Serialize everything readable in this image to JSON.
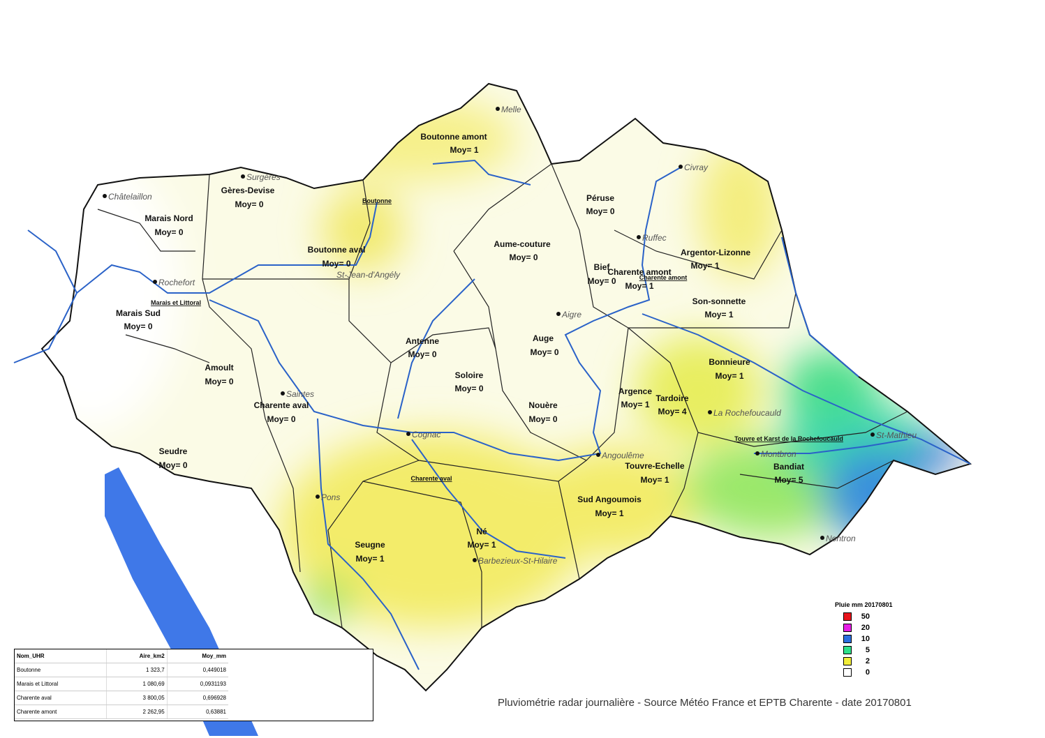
{
  "caption": "Pluviométrie radar journalière - Source Météo France et EPTB Charente - date 20170801",
  "legend": {
    "title": "Pluie mm 20170801",
    "items": [
      {
        "value": "50",
        "color": "#e8141c"
      },
      {
        "value": "20",
        "color": "#e61ee6"
      },
      {
        "value": "10",
        "color": "#2a6ee0"
      },
      {
        "value": "5",
        "color": "#2ee08a"
      },
      {
        "value": "2",
        "color": "#f2ee3a"
      },
      {
        "value": "0",
        "color": "#ffffff"
      }
    ]
  },
  "table": {
    "headers": [
      "Nom_UHR",
      "Aire_km2",
      "Moy_mm"
    ],
    "rows": [
      [
        "Boutonne",
        "1 323,7",
        "0,449018"
      ],
      [
        "Marais et Littoral",
        "1 080,69",
        "0,0931193"
      ],
      [
        "Charente aval",
        "3 800,05",
        "0,696928"
      ],
      [
        "Charente amont",
        "2 262,95",
        "0,63881"
      ]
    ]
  },
  "basins": [
    {
      "name": "Boutonne amont",
      "moy": "Moy= 1"
    },
    {
      "name": "Gères-Devise",
      "moy": "Moy= 0"
    },
    {
      "name": "Marais Nord",
      "moy": "Moy= 0"
    },
    {
      "name": "Boutonne aval",
      "moy": "Moy= 0"
    },
    {
      "name": "Marais Sud",
      "moy": "Moy= 0"
    },
    {
      "name": "Péruse",
      "moy": "Moy= 0"
    },
    {
      "name": "Aume-couture",
      "moy": "Moy= 0"
    },
    {
      "name": "Argentor-Lizonne",
      "moy": "Moy= 1"
    },
    {
      "name": "Bief",
      "moy": "Moy= 0"
    },
    {
      "name": "Charente amont",
      "moy": "Moy= 1"
    },
    {
      "name": "Son-sonnette",
      "moy": "Moy= 1"
    },
    {
      "name": "Auge",
      "moy": "Moy= 0"
    },
    {
      "name": "Antenne",
      "moy": "Moy= 0"
    },
    {
      "name": "Soloire",
      "moy": "Moy= 0"
    },
    {
      "name": "Bonnieure",
      "moy": "Moy= 1"
    },
    {
      "name": "Amoult",
      "moy": "Moy= 0"
    },
    {
      "name": "Charente aval",
      "moy": "Moy= 0"
    },
    {
      "name": "Argence",
      "moy": "Moy= 1"
    },
    {
      "name": "Tardoire",
      "moy": "Moy= 4"
    },
    {
      "name": "Nouère",
      "moy": "Moy= 0"
    },
    {
      "name": "Seudre",
      "moy": "Moy= 0"
    },
    {
      "name": "Touvre-Echelle",
      "moy": "Moy= 1"
    },
    {
      "name": "Bandiat",
      "moy": "Moy= 5"
    },
    {
      "name": "Sud Angoumois",
      "moy": "Moy= 1"
    },
    {
      "name": "Né",
      "moy": "Moy= 1"
    },
    {
      "name": "Seugne",
      "moy": "Moy= 1"
    }
  ],
  "towns": [
    "Melle",
    "Surgères",
    "Châtelaillon",
    "Civray",
    "Ruffec",
    "Rochefort",
    "St-Jean-d'Angély",
    "Aigre",
    "Saintes",
    "Cognac",
    "La Rochefoucauld",
    "St-Mathieu",
    "Angoulême",
    "Montbron",
    "Pons",
    "Barbezieux-St-Hilaire",
    "Nontron"
  ],
  "uhr_labels": [
    "Boutonne",
    "Marais et Littoral",
    "Charente amont",
    "Charente aval",
    "Touvre et Karst de la Rochefoucauld"
  ]
}
